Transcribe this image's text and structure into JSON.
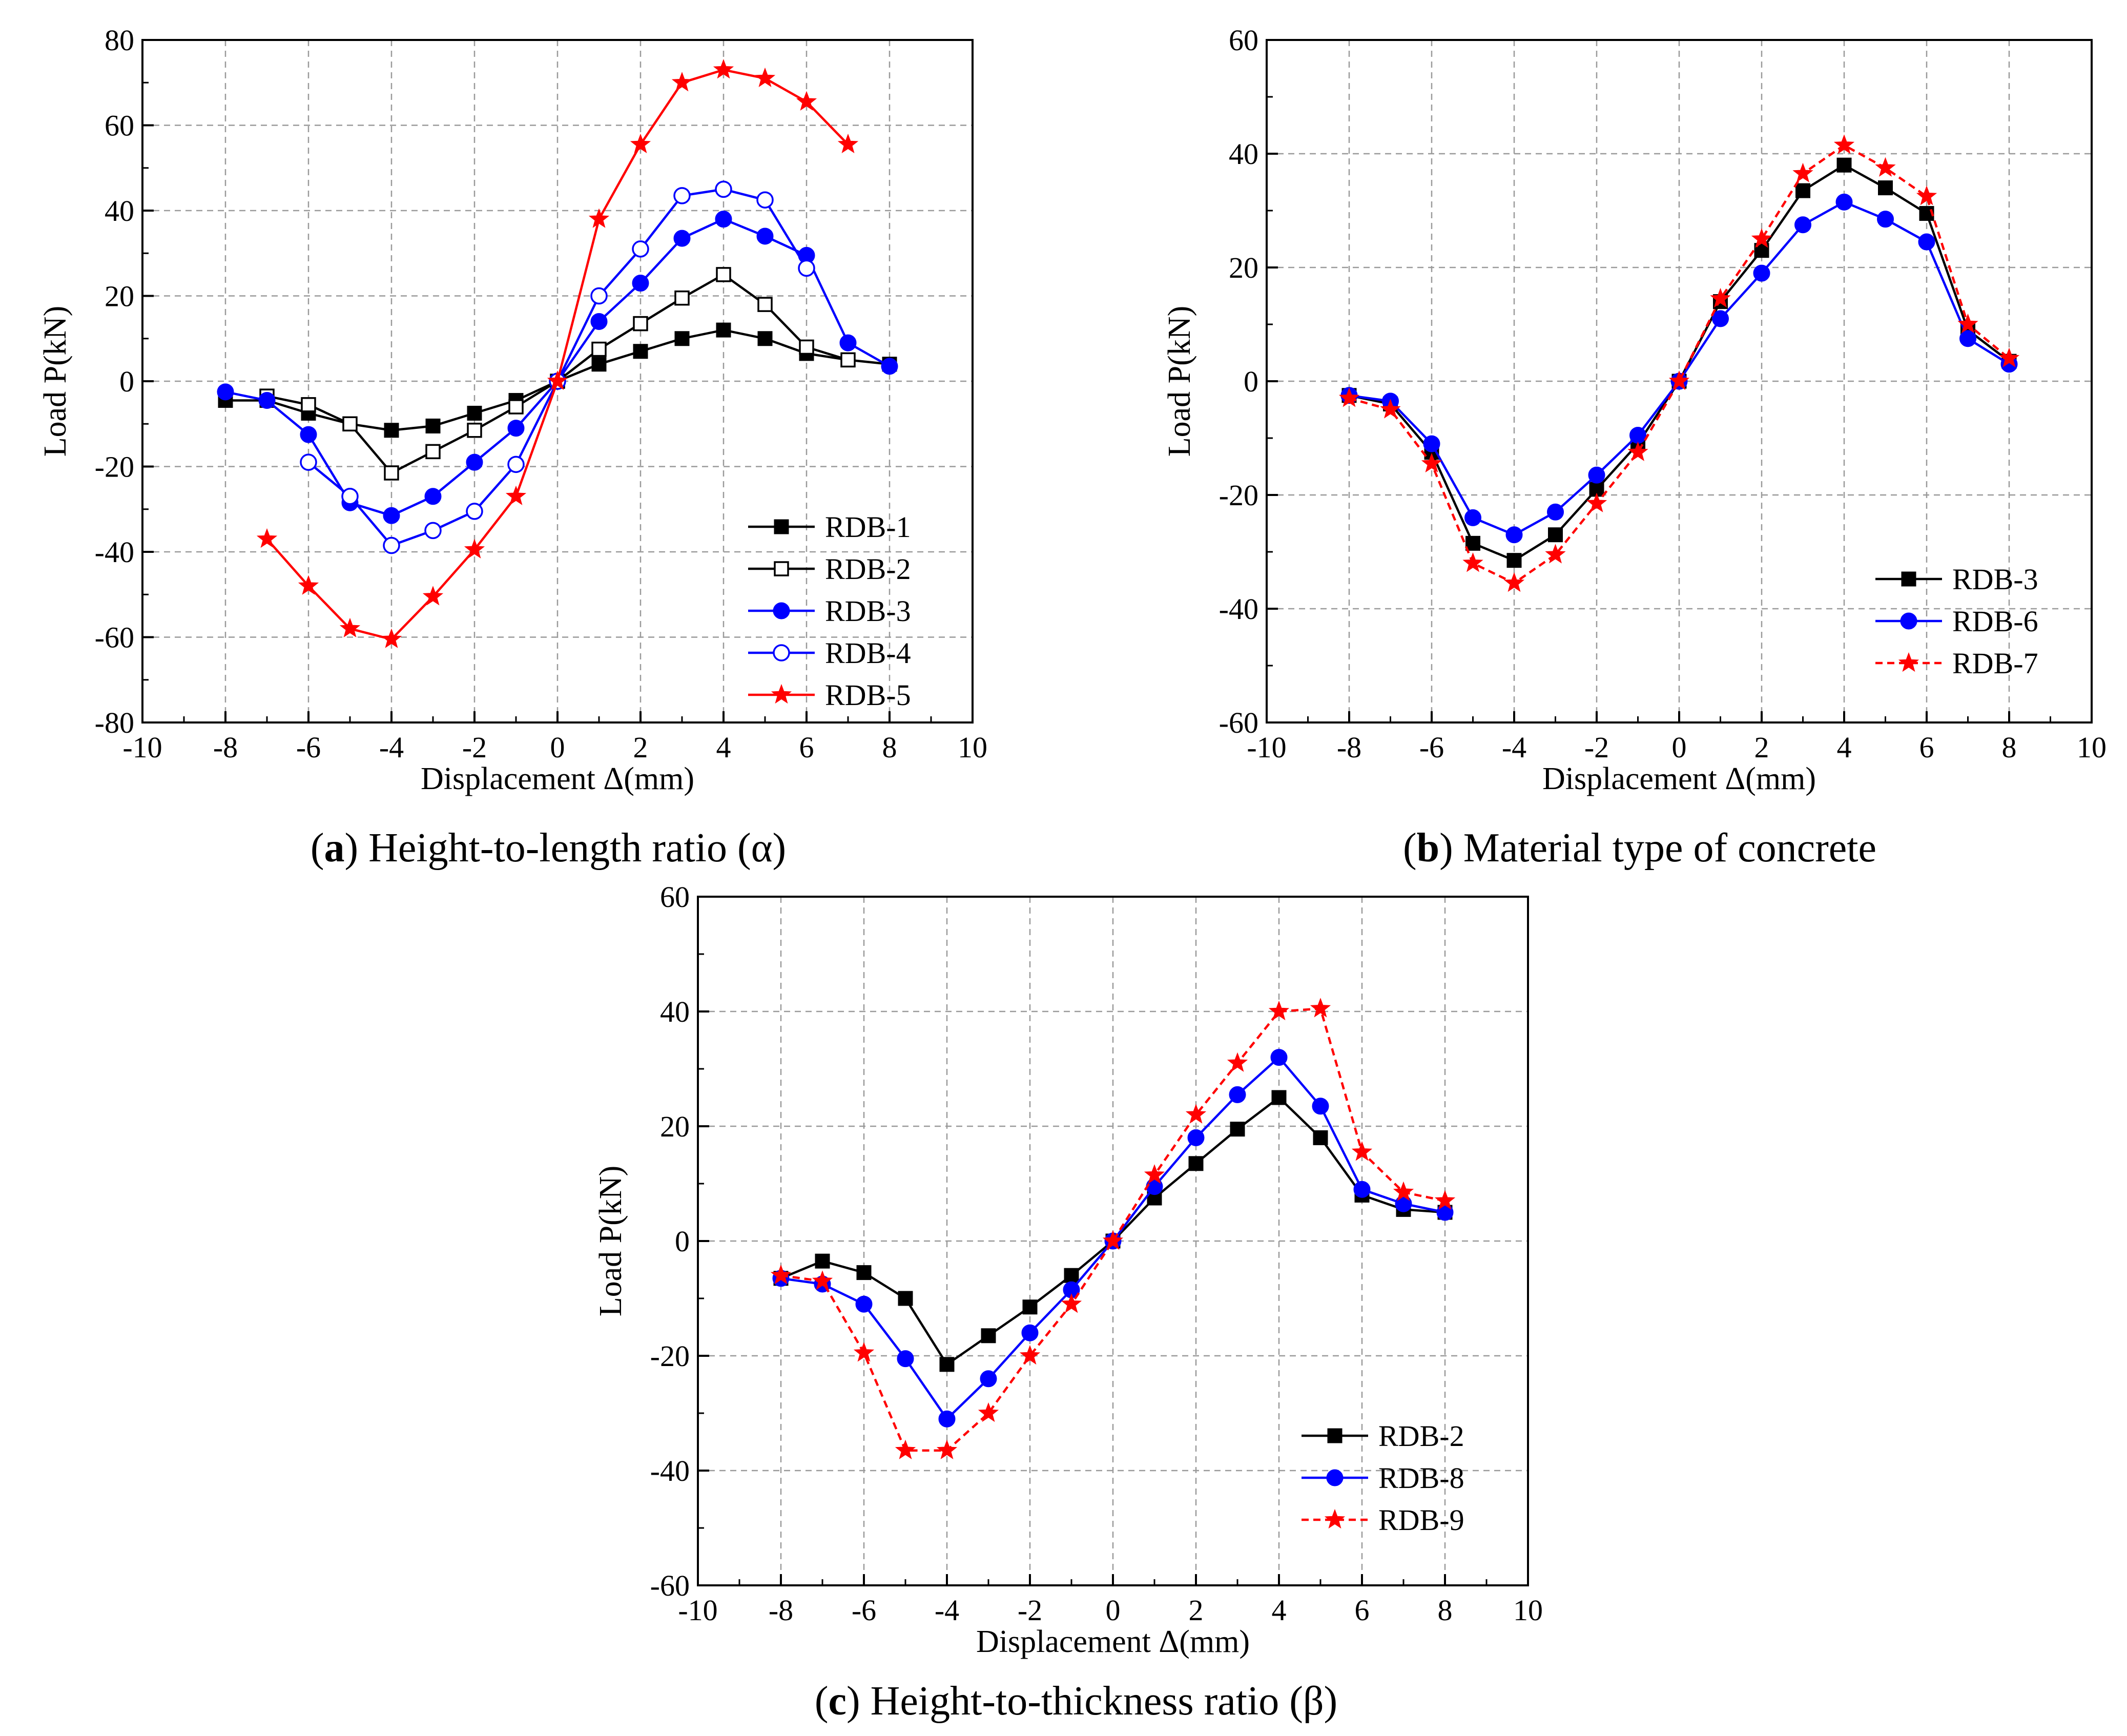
{
  "charts": [
    {
      "id": "a",
      "caption": {
        "letter": "a",
        "text": "Height-to-length ratio (α)"
      },
      "chart_data": {
        "type": "line",
        "xlabel": "Displacement Δ(mm)",
        "ylabel": "Load P(kN)",
        "xlim": [
          -10,
          10
        ],
        "ylim": [
          -80,
          80
        ],
        "xticks": [
          -10,
          -8,
          -6,
          -4,
          -2,
          0,
          2,
          4,
          6,
          8,
          10
        ],
        "yticks": [
          -80,
          -60,
          -40,
          -20,
          0,
          20,
          40,
          60,
          80
        ],
        "grid": true,
        "legend_position": "bottom-right",
        "series": [
          {
            "name": "RDB-1",
            "color": "#000000",
            "marker": "square-filled",
            "dash": "solid",
            "points": [
              [
                -8,
                -4.5
              ],
              [
                -7,
                -4.5
              ],
              [
                -6,
                -7.5
              ],
              [
                -5,
                -10
              ],
              [
                -4,
                -11.5
              ],
              [
                -3,
                -10.5
              ],
              [
                -2,
                -7.5
              ],
              [
                -1,
                -4.5
              ],
              [
                0,
                0
              ],
              [
                1,
                4
              ],
              [
                2,
                7
              ],
              [
                3,
                10
              ],
              [
                4,
                12
              ],
              [
                5,
                10
              ],
              [
                6,
                6.5
              ],
              [
                7,
                5
              ],
              [
                8,
                4
              ]
            ]
          },
          {
            "name": "RDB-2",
            "color": "#000000",
            "marker": "square-open",
            "dash": "solid",
            "points": [
              [
                -7,
                -3.5
              ],
              [
                -6,
                -5.5
              ],
              [
                -5,
                -10
              ],
              [
                -4,
                -21.5
              ],
              [
                -3,
                -16.5
              ],
              [
                -2,
                -11.5
              ],
              [
                -1,
                -6
              ],
              [
                0,
                0
              ],
              [
                1,
                7.5
              ],
              [
                2,
                13.5
              ],
              [
                3,
                19.5
              ],
              [
                4,
                25
              ],
              [
                5,
                18
              ],
              [
                6,
                8
              ],
              [
                7,
                5
              ]
            ]
          },
          {
            "name": "RDB-3",
            "color": "#0000ff",
            "marker": "circle-filled",
            "dash": "solid",
            "points": [
              [
                -8,
                -2.5
              ],
              [
                -7,
                -4.5
              ],
              [
                -6,
                -12.5
              ],
              [
                -5,
                -28.5
              ],
              [
                -4,
                -31.5
              ],
              [
                -3,
                -27
              ],
              [
                -2,
                -19
              ],
              [
                -1,
                -11
              ],
              [
                0,
                0
              ],
              [
                1,
                14
              ],
              [
                2,
                23
              ],
              [
                3,
                33.5
              ],
              [
                4,
                38
              ],
              [
                5,
                34
              ],
              [
                6,
                29.5
              ],
              [
                7,
                9
              ],
              [
                8,
                3.5
              ]
            ]
          },
          {
            "name": "RDB-4",
            "color": "#0000ff",
            "marker": "circle-open",
            "dash": "solid",
            "points": [
              [
                -6,
                -19
              ],
              [
                -5,
                -27
              ],
              [
                -4,
                -38.5
              ],
              [
                -3,
                -35
              ],
              [
                -2,
                -30.5
              ],
              [
                -1,
                -19.5
              ],
              [
                0,
                0
              ],
              [
                1,
                20
              ],
              [
                2,
                31
              ],
              [
                3,
                43.5
              ],
              [
                4,
                45
              ],
              [
                5,
                42.5
              ],
              [
                6,
                26.5
              ]
            ]
          },
          {
            "name": "RDB-5",
            "color": "#ff0000",
            "marker": "star",
            "dash": "solid",
            "points": [
              [
                -7,
                -37
              ],
              [
                -6,
                -48
              ],
              [
                -5,
                -58
              ],
              [
                -4,
                -60.5
              ],
              [
                -3,
                -50.5
              ],
              [
                -2,
                -39.5
              ],
              [
                -1,
                -27
              ],
              [
                0,
                0
              ],
              [
                1,
                38
              ],
              [
                2,
                55.5
              ],
              [
                3,
                70
              ],
              [
                4,
                73
              ],
              [
                5,
                71
              ],
              [
                6,
                65.5
              ],
              [
                7,
                55.5
              ]
            ]
          }
        ]
      }
    },
    {
      "id": "b",
      "caption": {
        "letter": "b",
        "text": "Material type of concrete"
      },
      "chart_data": {
        "type": "line",
        "xlabel": "Displacement Δ(mm)",
        "ylabel": "Load P(kN)",
        "xlim": [
          -10,
          10
        ],
        "ylim": [
          -60,
          60
        ],
        "xticks": [
          -10,
          -8,
          -6,
          -4,
          -2,
          0,
          2,
          4,
          6,
          8,
          10
        ],
        "yticks": [
          -60,
          -40,
          -20,
          0,
          20,
          40,
          60
        ],
        "grid": true,
        "legend_position": "bottom-right",
        "series": [
          {
            "name": "RDB-3",
            "color": "#000000",
            "marker": "square-filled",
            "dash": "solid",
            "points": [
              [
                -8,
                -2.5
              ],
              [
                -7,
                -4
              ],
              [
                -6,
                -12.5
              ],
              [
                -5,
                -28.5
              ],
              [
                -4,
                -31.5
              ],
              [
                -3,
                -27
              ],
              [
                -2,
                -19
              ],
              [
                -1,
                -11
              ],
              [
                0,
                0
              ],
              [
                1,
                14
              ],
              [
                2,
                23
              ],
              [
                3,
                33.5
              ],
              [
                4,
                38
              ],
              [
                5,
                34
              ],
              [
                6,
                29.5
              ],
              [
                7,
                9
              ],
              [
                8,
                3.5
              ]
            ]
          },
          {
            "name": "RDB-6",
            "color": "#0000ff",
            "marker": "circle-filled",
            "dash": "solid",
            "points": [
              [
                -8,
                -2.5
              ],
              [
                -7,
                -3.5
              ],
              [
                -6,
                -11
              ],
              [
                -5,
                -24
              ],
              [
                -4,
                -27
              ],
              [
                -3,
                -23
              ],
              [
                -2,
                -16.5
              ],
              [
                -1,
                -9.5
              ],
              [
                0,
                0
              ],
              [
                1,
                11
              ],
              [
                2,
                19
              ],
              [
                3,
                27.5
              ],
              [
                4,
                31.5
              ],
              [
                5,
                28.5
              ],
              [
                6,
                24.5
              ],
              [
                7,
                7.5
              ],
              [
                8,
                3
              ]
            ]
          },
          {
            "name": "RDB-7",
            "color": "#ff0000",
            "marker": "star",
            "dash": "dashed",
            "points": [
              [
                -8,
                -3
              ],
              [
                -7,
                -5
              ],
              [
                -6,
                -14.5
              ],
              [
                -5,
                -32
              ],
              [
                -4,
                -35.5
              ],
              [
                -3,
                -30.5
              ],
              [
                -2,
                -21.5
              ],
              [
                -1,
                -12.5
              ],
              [
                0,
                0
              ],
              [
                1,
                14.5
              ],
              [
                2,
                25
              ],
              [
                3,
                36.5
              ],
              [
                4,
                41.5
              ],
              [
                5,
                37.5
              ],
              [
                6,
                32.5
              ],
              [
                7,
                10
              ],
              [
                8,
                4
              ]
            ]
          }
        ]
      }
    },
    {
      "id": "c",
      "caption": {
        "letter": "c",
        "text": "Height-to-thickness ratio (β)"
      },
      "chart_data": {
        "type": "line",
        "xlabel": "Displacement Δ(mm)",
        "ylabel": "Load P(kN)",
        "xlim": [
          -10,
          10
        ],
        "ylim": [
          -60,
          60
        ],
        "xticks": [
          -10,
          -8,
          -6,
          -4,
          -2,
          0,
          2,
          4,
          6,
          8,
          10
        ],
        "yticks": [
          -60,
          -40,
          -20,
          0,
          20,
          40,
          60
        ],
        "grid": true,
        "legend_position": "bottom-right",
        "series": [
          {
            "name": "RDB-2",
            "color": "#000000",
            "marker": "square-filled",
            "dash": "solid",
            "points": [
              [
                -8,
                -6.5
              ],
              [
                -7,
                -3.5
              ],
              [
                -6,
                -5.5
              ],
              [
                -5,
                -10
              ],
              [
                -4,
                -21.5
              ],
              [
                -3,
                -16.5
              ],
              [
                -2,
                -11.5
              ],
              [
                -1,
                -6
              ],
              [
                0,
                0
              ],
              [
                1,
                7.5
              ],
              [
                2,
                13.5
              ],
              [
                3,
                19.5
              ],
              [
                4,
                25
              ],
              [
                5,
                18
              ],
              [
                6,
                8
              ],
              [
                7,
                5.5
              ],
              [
                8,
                5
              ]
            ]
          },
          {
            "name": "RDB-8",
            "color": "#0000ff",
            "marker": "circle-filled",
            "dash": "solid",
            "points": [
              [
                -8,
                -6.5
              ],
              [
                -7,
                -7.5
              ],
              [
                -6,
                -11
              ],
              [
                -5,
                -20.5
              ],
              [
                -4,
                -31
              ],
              [
                -3,
                -24
              ],
              [
                -2,
                -16
              ],
              [
                -1,
                -8.5
              ],
              [
                0,
                0
              ],
              [
                1,
                9.5
              ],
              [
                2,
                18
              ],
              [
                3,
                25.5
              ],
              [
                4,
                32
              ],
              [
                5,
                23.5
              ],
              [
                6,
                9
              ],
              [
                7,
                6.5
              ],
              [
                8,
                5
              ]
            ]
          },
          {
            "name": "RDB-9",
            "color": "#ff0000",
            "marker": "star",
            "dash": "dashed",
            "points": [
              [
                -8,
                -6
              ],
              [
                -7,
                -7
              ],
              [
                -6,
                -19.5
              ],
              [
                -5,
                -36.5
              ],
              [
                -4,
                -36.5
              ],
              [
                -3,
                -30
              ],
              [
                -2,
                -20
              ],
              [
                -1,
                -11
              ],
              [
                0,
                0
              ],
              [
                1,
                11.5
              ],
              [
                2,
                22
              ],
              [
                3,
                31
              ],
              [
                4,
                40
              ],
              [
                5,
                40.5
              ],
              [
                6,
                15.5
              ],
              [
                7,
                8.5
              ],
              [
                8,
                7
              ]
            ]
          }
        ]
      }
    }
  ]
}
